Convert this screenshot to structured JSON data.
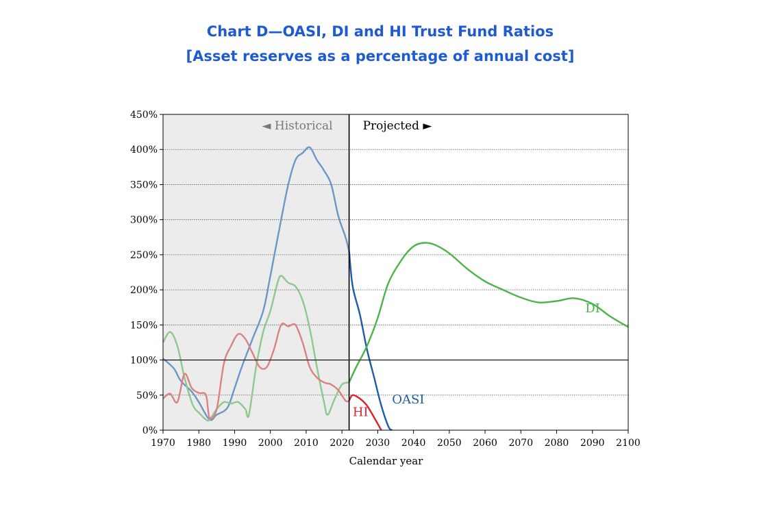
{
  "header": {
    "title": "Chart D—OASI, DI and HI Trust Fund Ratios",
    "subtitle": "[Asset reserves as a percentage of annual cost]"
  },
  "chart_data": {
    "type": "line",
    "xlabel": "Calendar year",
    "ylabel": "",
    "xlim": [
      1970,
      2100
    ],
    "ylim": [
      0,
      450
    ],
    "x_ticks": [
      1970,
      1980,
      1990,
      2000,
      2010,
      2020,
      2030,
      2040,
      2050,
      2060,
      2070,
      2080,
      2090,
      2100
    ],
    "y_ticks": [
      0,
      50,
      100,
      150,
      200,
      250,
      300,
      350,
      400,
      450
    ],
    "y_tick_labels": [
      "0%",
      "50%",
      "100%",
      "150%",
      "200%",
      "250%",
      "300%",
      "350%",
      "400%",
      "450%"
    ],
    "grid": "horizontal dotted",
    "divider_year": 2022,
    "historical_label": "◄ Historical",
    "projected_label": "Projected ►",
    "historical_shade": "#ececec",
    "series": [
      {
        "name": "OASI",
        "label_pos": [
          2034,
          38
        ],
        "color_hist": "#6a97c8",
        "color_proj": "#1c5ca8",
        "historical": [
          [
            1970,
            102
          ],
          [
            1973,
            88
          ],
          [
            1975,
            70
          ],
          [
            1978,
            55
          ],
          [
            1980,
            40
          ],
          [
            1983,
            15
          ],
          [
            1985,
            22
          ],
          [
            1988,
            32
          ],
          [
            1990,
            60
          ],
          [
            1992,
            90
          ],
          [
            1995,
            130
          ],
          [
            1998,
            170
          ],
          [
            2000,
            220
          ],
          [
            2003,
            300
          ],
          [
            2005,
            350
          ],
          [
            2007,
            385
          ],
          [
            2009,
            395
          ],
          [
            2011,
            403
          ],
          [
            2013,
            385
          ],
          [
            2015,
            370
          ],
          [
            2017,
            350
          ],
          [
            2019,
            305
          ],
          [
            2021,
            275
          ],
          [
            2022,
            255
          ]
        ],
        "projected": [
          [
            2022,
            255
          ],
          [
            2023,
            205
          ],
          [
            2025,
            165
          ],
          [
            2027,
            115
          ],
          [
            2029,
            75
          ],
          [
            2031,
            35
          ],
          [
            2033,
            5
          ],
          [
            2034,
            0
          ]
        ]
      },
      {
        "name": "DI",
        "label_pos": [
          2088,
          168
        ],
        "color_hist": "#8cc98c",
        "color_proj": "#4cb34a",
        "historical": [
          [
            1970,
            125
          ],
          [
            1972,
            140
          ],
          [
            1974,
            120
          ],
          [
            1976,
            75
          ],
          [
            1978,
            40
          ],
          [
            1979,
            30
          ],
          [
            1980,
            25
          ],
          [
            1982,
            15
          ],
          [
            1983,
            15
          ],
          [
            1985,
            30
          ],
          [
            1987,
            40
          ],
          [
            1989,
            38
          ],
          [
            1991,
            40
          ],
          [
            1993,
            30
          ],
          [
            1994,
            22
          ],
          [
            1996,
            90
          ],
          [
            1998,
            140
          ],
          [
            2000,
            170
          ],
          [
            2002,
            210
          ],
          [
            2003,
            220
          ],
          [
            2005,
            210
          ],
          [
            2007,
            205
          ],
          [
            2009,
            185
          ],
          [
            2011,
            145
          ],
          [
            2013,
            90
          ],
          [
            2015,
            40
          ],
          [
            2016,
            22
          ],
          [
            2018,
            45
          ],
          [
            2020,
            65
          ],
          [
            2022,
            68
          ]
        ],
        "projected": [
          [
            2022,
            68
          ],
          [
            2024,
            90
          ],
          [
            2027,
            120
          ],
          [
            2030,
            160
          ],
          [
            2033,
            210
          ],
          [
            2037,
            245
          ],
          [
            2040,
            262
          ],
          [
            2043,
            267
          ],
          [
            2046,
            264
          ],
          [
            2050,
            252
          ],
          [
            2055,
            230
          ],
          [
            2060,
            212
          ],
          [
            2065,
            200
          ],
          [
            2070,
            189
          ],
          [
            2075,
            182
          ],
          [
            2080,
            184
          ],
          [
            2085,
            188
          ],
          [
            2090,
            180
          ],
          [
            2095,
            162
          ],
          [
            2100,
            147
          ]
        ]
      },
      {
        "name": "HI",
        "label_pos": [
          2023,
          20
        ],
        "color_hist": "#dc8080",
        "color_proj": "#d6262e",
        "historical": [
          [
            1970,
            45
          ],
          [
            1972,
            52
          ],
          [
            1974,
            40
          ],
          [
            1976,
            80
          ],
          [
            1978,
            60
          ],
          [
            1980,
            53
          ],
          [
            1982,
            50
          ],
          [
            1983,
            18
          ],
          [
            1985,
            30
          ],
          [
            1987,
            95
          ],
          [
            1989,
            120
          ],
          [
            1991,
            137
          ],
          [
            1993,
            130
          ],
          [
            1995,
            110
          ],
          [
            1997,
            90
          ],
          [
            1999,
            90
          ],
          [
            2001,
            115
          ],
          [
            2003,
            150
          ],
          [
            2005,
            148
          ],
          [
            2007,
            150
          ],
          [
            2009,
            125
          ],
          [
            2011,
            90
          ],
          [
            2013,
            75
          ],
          [
            2015,
            68
          ],
          [
            2017,
            65
          ],
          [
            2019,
            57
          ],
          [
            2021,
            42
          ],
          [
            2022,
            42
          ]
        ],
        "projected": [
          [
            2022,
            42
          ],
          [
            2023,
            50
          ],
          [
            2025,
            45
          ],
          [
            2027,
            35
          ],
          [
            2029,
            18
          ],
          [
            2031,
            0
          ]
        ]
      }
    ]
  }
}
